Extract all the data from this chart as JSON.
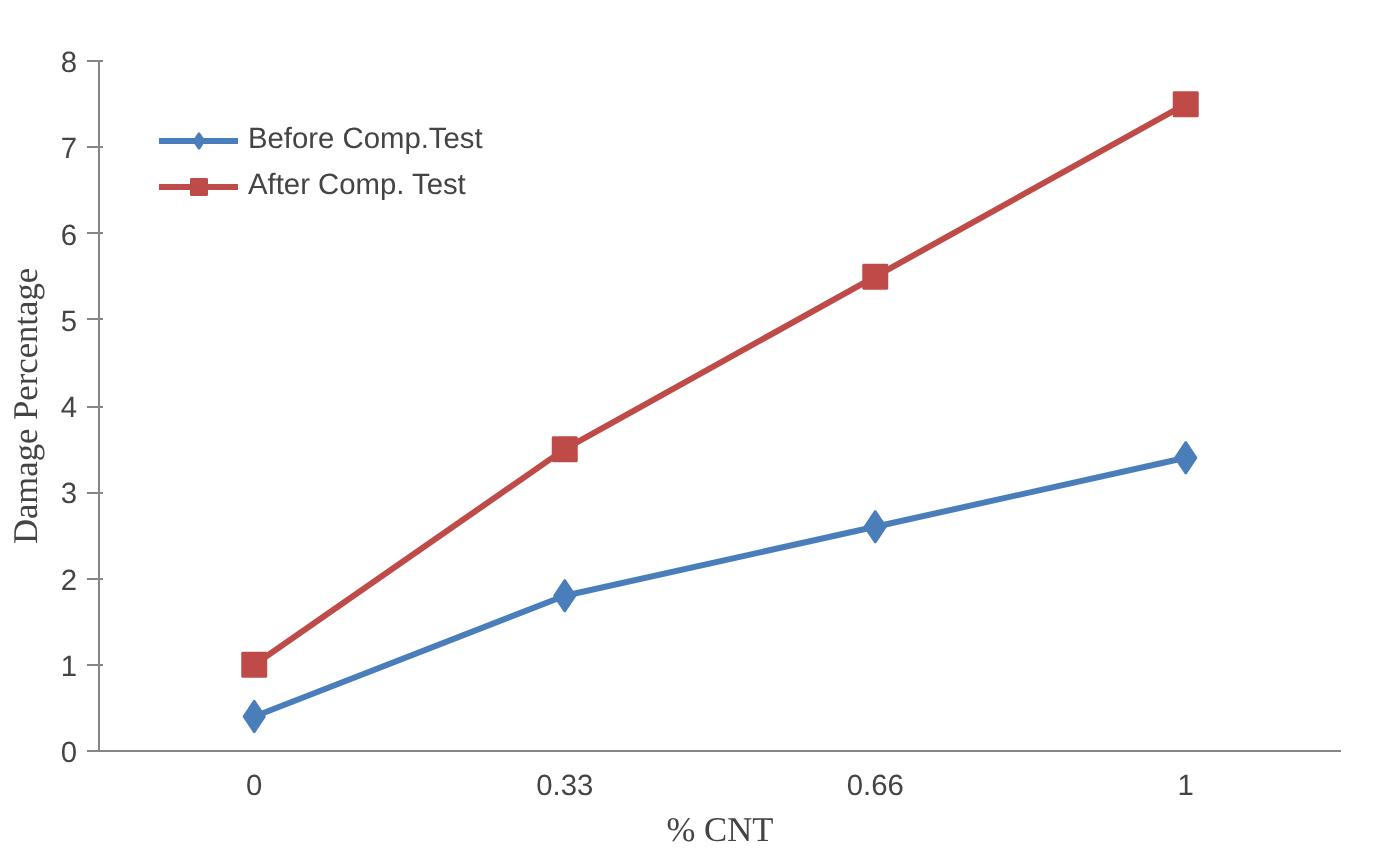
{
  "chart_data": {
    "type": "line",
    "xlabel": "% CNT",
    "ylabel": "Damage Percentage",
    "categories": [
      "0",
      "0.33",
      "0.66",
      "1"
    ],
    "series": [
      {
        "name": "Before Comp.Test",
        "color": "#4a7ebb",
        "marker": "diamond",
        "values": [
          0.4,
          1.8,
          2.6,
          3.4
        ]
      },
      {
        "name": "After Comp. Test",
        "color": "#be4b48",
        "marker": "square",
        "values": [
          1.0,
          3.5,
          5.5,
          7.5
        ]
      }
    ],
    "ylim": [
      0,
      8
    ],
    "yticks": [
      0,
      1,
      2,
      3,
      4,
      5,
      6,
      7,
      8
    ],
    "grid": false,
    "legend": "top left",
    "line_style": "solid"
  }
}
